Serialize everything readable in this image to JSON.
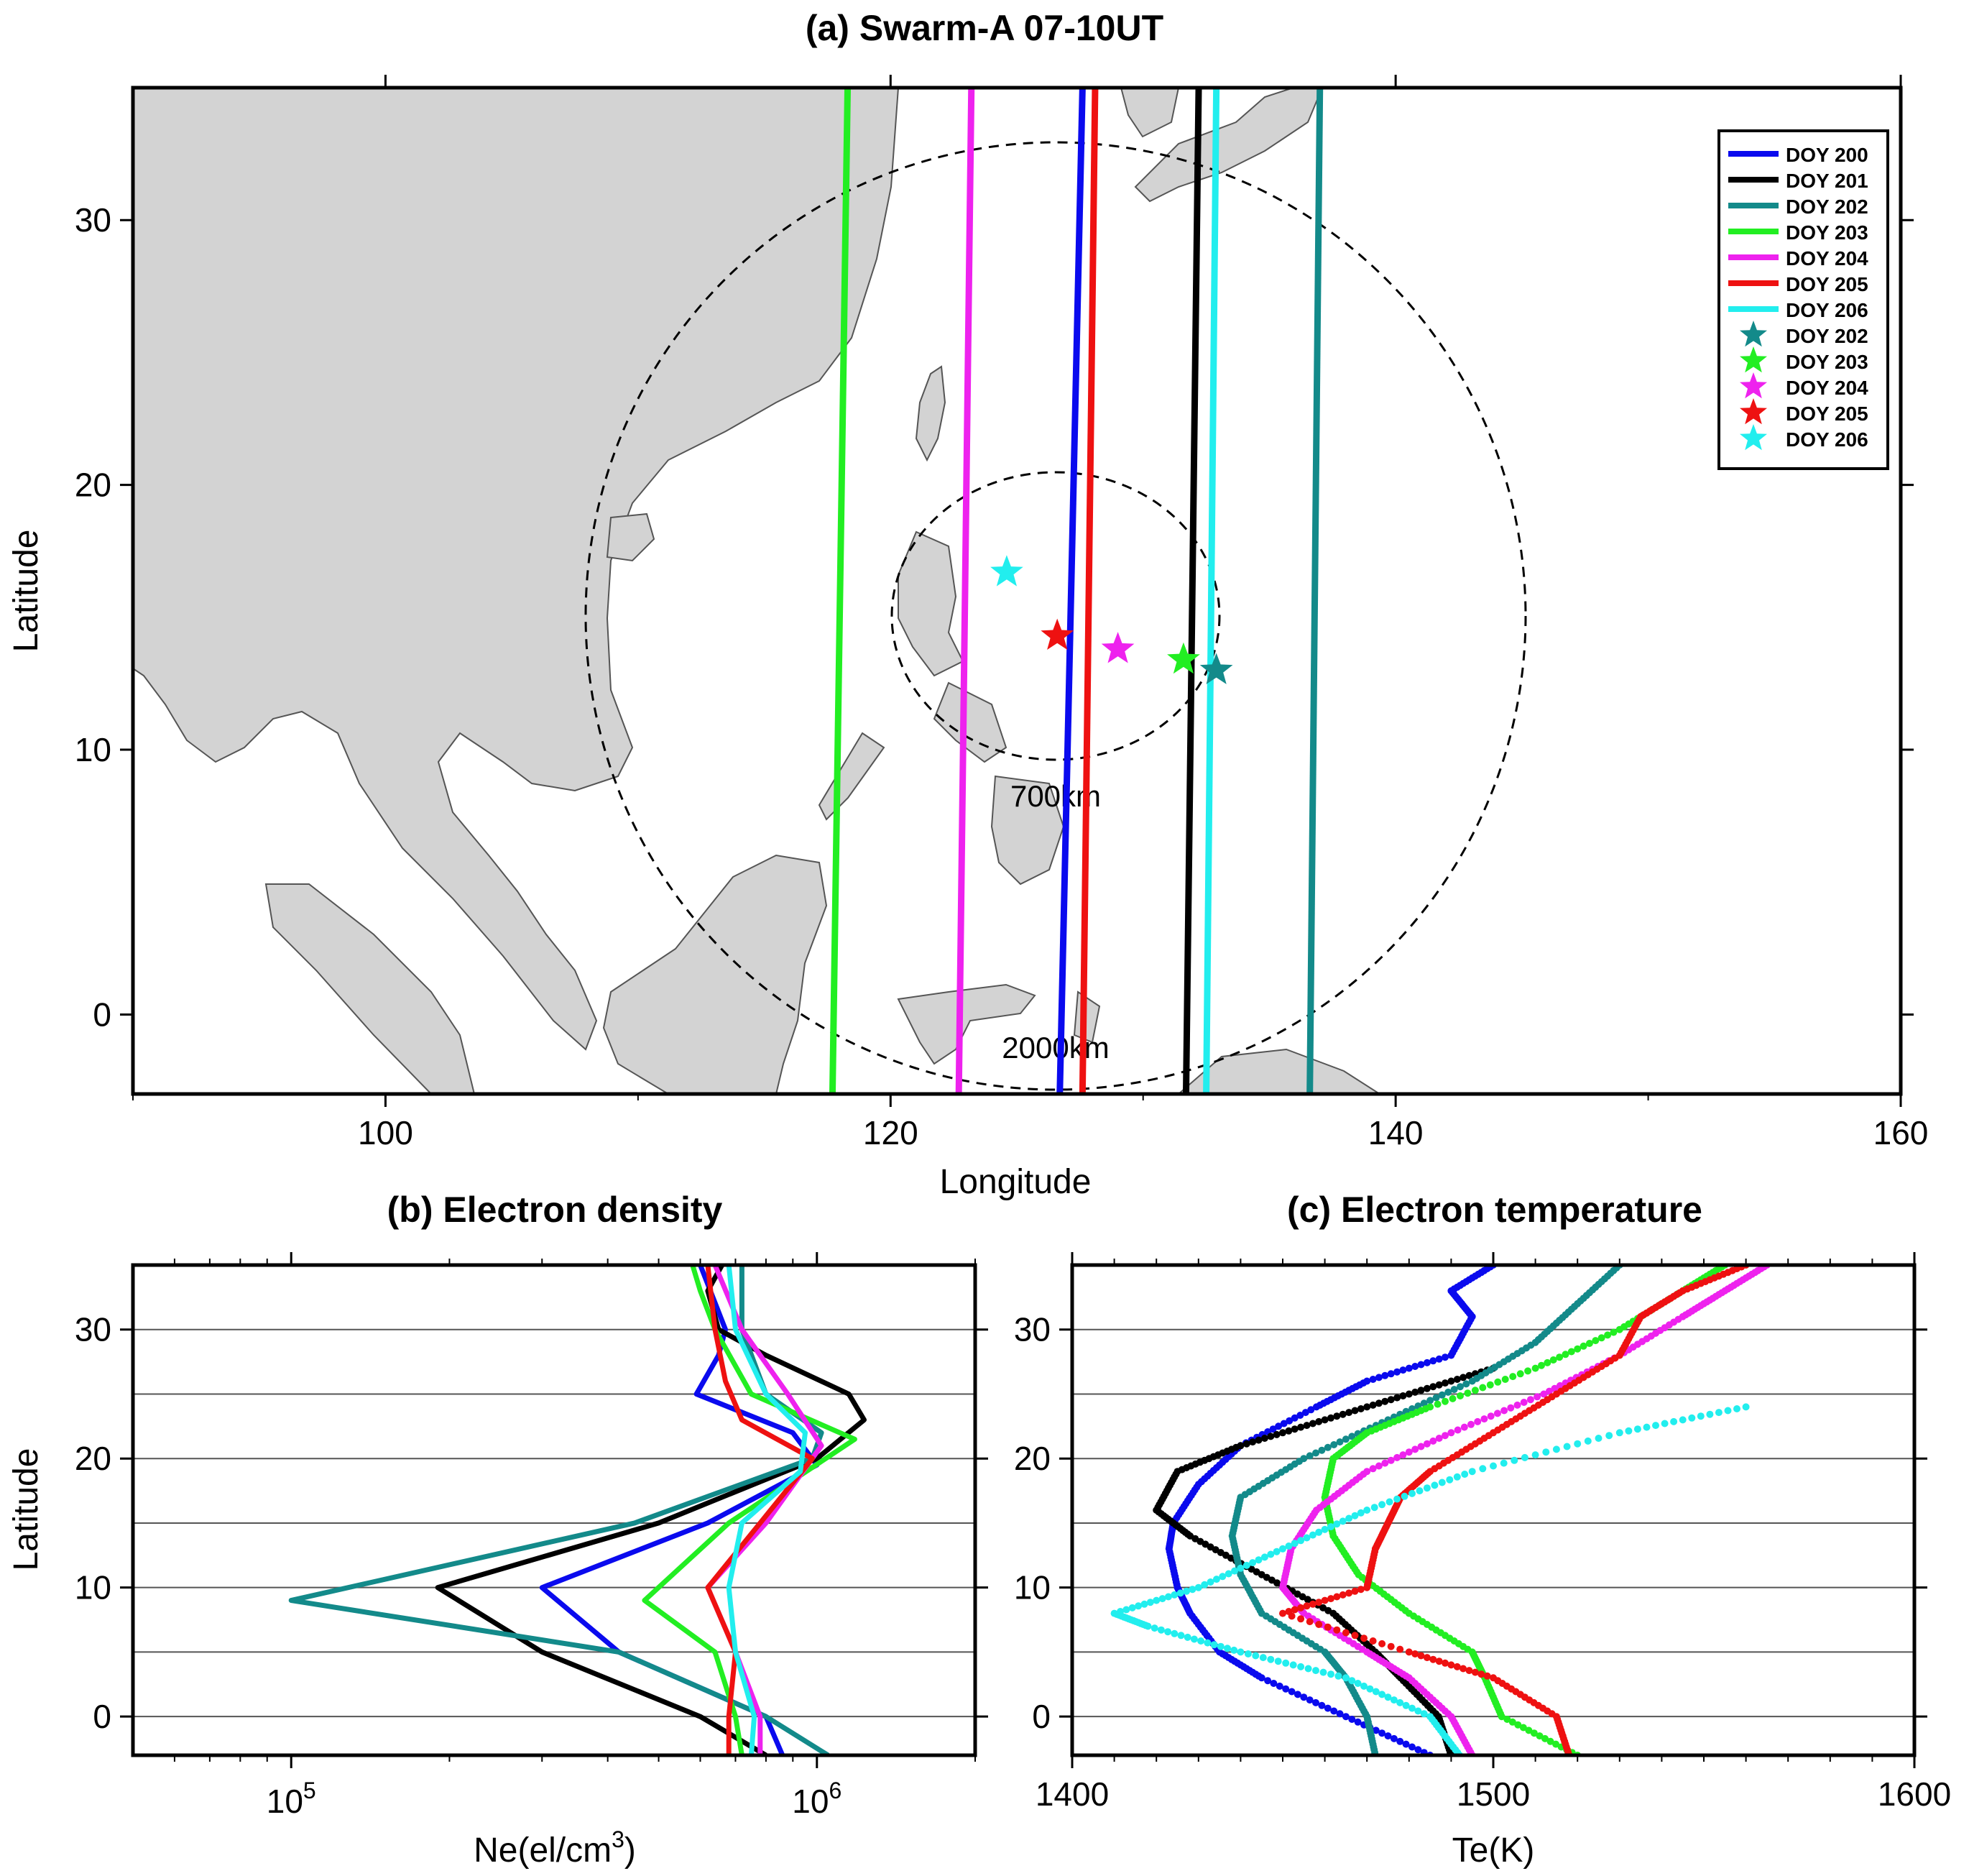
{
  "panel_a": {
    "title": "(a) Swarm-A 07-10UT",
    "xlabel": "Longitude",
    "ylabel": "Latitude",
    "circle_labels": [
      "700km",
      "2000km"
    ],
    "legend_lines": [
      {
        "label": "DOY 200",
        "color": "#0a0aee"
      },
      {
        "label": "DOY 201",
        "color": "#000000"
      },
      {
        "label": "DOY 202",
        "color": "#138a8a"
      },
      {
        "label": "DOY 203",
        "color": "#22ee22"
      },
      {
        "label": "DOY 204",
        "color": "#ee22ee"
      },
      {
        "label": "DOY 205",
        "color": "#ee1111"
      },
      {
        "label": "DOY 206",
        "color": "#22eeee"
      }
    ],
    "legend_stars": [
      {
        "label": "DOY 202",
        "color": "#138a8a"
      },
      {
        "label": "DOY 203",
        "color": "#22ee22"
      },
      {
        "label": "DOY 204",
        "color": "#ee22ee"
      },
      {
        "label": "DOY 205",
        "color": "#ee1111"
      },
      {
        "label": "DOY 206",
        "color": "#22eeee"
      }
    ]
  },
  "panel_b": {
    "title": "(b) Electron density",
    "xlabel_main": "Ne(el/cm",
    "xlabel_sup": "3",
    "xlabel_end": ")",
    "ylabel": "Latitude",
    "xtick_labels": [
      {
        "base": "10",
        "exp": "5"
      },
      {
        "base": "10",
        "exp": "6"
      }
    ]
  },
  "panel_c": {
    "title": "(c) Electron temperature",
    "xlabel": "Te(K)",
    "xtick_labels": [
      "1400",
      "1500",
      "1600"
    ]
  },
  "chart_data": [
    {
      "type": "line",
      "panel": "a",
      "title": "(a) Swarm-A 07-10UT",
      "xlabel": "Longitude",
      "ylabel": "Latitude",
      "xlim": [
        90,
        160
      ],
      "ylim": [
        -3,
        35
      ],
      "xticks": [
        100,
        120,
        140,
        160
      ],
      "yticks": [
        0,
        10,
        20,
        30
      ],
      "center": {
        "lon": 126.5,
        "lat": 14.8
      },
      "circles": [
        {
          "label": "700km",
          "radius_deg_lat": 5.8
        },
        {
          "label": "2000km",
          "radius_deg_lat": 17.9
        }
      ],
      "series": [
        {
          "name": "DOY 200",
          "color": "#0a0aee",
          "x": [
            126.7,
            127.6
          ],
          "y": [
            -3,
            35
          ]
        },
        {
          "name": "DOY 201",
          "color": "#000000",
          "x": [
            131.7,
            132.2
          ],
          "y": [
            -3,
            35
          ]
        },
        {
          "name": "DOY 202",
          "color": "#138a8a",
          "x": [
            136.6,
            137.0
          ],
          "y": [
            -3,
            35
          ]
        },
        {
          "name": "DOY 203",
          "color": "#22ee22",
          "x": [
            117.7,
            118.3
          ],
          "y": [
            -3,
            35
          ]
        },
        {
          "name": "DOY 204",
          "color": "#ee22ee",
          "x": [
            122.7,
            123.2
          ],
          "y": [
            -3,
            35
          ]
        },
        {
          "name": "DOY 205",
          "color": "#ee1111",
          "x": [
            127.6,
            128.1
          ],
          "y": [
            -3,
            35
          ]
        },
        {
          "name": "DOY 206",
          "color": "#22eeee",
          "x": [
            132.5,
            132.9
          ],
          "y": [
            -3,
            35
          ]
        }
      ],
      "stars": [
        {
          "name": "DOY 202",
          "color": "#138a8a",
          "lon": 132.9,
          "lat": 13.0
        },
        {
          "name": "DOY 203",
          "color": "#22ee22",
          "lon": 131.6,
          "lat": 13.4
        },
        {
          "name": "DOY 204",
          "color": "#ee22ee",
          "lon": 129.0,
          "lat": 13.8
        },
        {
          "name": "DOY 205",
          "color": "#ee1111",
          "lon": 126.6,
          "lat": 14.3
        },
        {
          "name": "DOY 206",
          "color": "#22eeee",
          "lon": 124.6,
          "lat": 16.7
        }
      ],
      "ticks": {
        "x": [
          "100",
          "120",
          "140",
          "160"
        ],
        "y": [
          "0",
          "10",
          "20",
          "30"
        ]
      }
    },
    {
      "type": "line",
      "panel": "b",
      "title": "(b) Electron density",
      "xlabel": "Ne(el/cm3)",
      "ylabel": "Latitude",
      "xscale": "log",
      "xlim": [
        50000,
        2000000
      ],
      "ylim": [
        -3,
        35
      ],
      "yticks": [
        "0",
        "10",
        "20",
        "30"
      ],
      "series": [
        {
          "name": "DOY 200",
          "color": "#0a0aee",
          "lat": [
            -3,
            0,
            5,
            10,
            15,
            19.5,
            22,
            25,
            28,
            30,
            35
          ],
          "ne": [
            860000,
            800000,
            420000,
            300000,
            620000,
            1000000,
            900000,
            590000,
            650000,
            670000,
            600000
          ]
        },
        {
          "name": "DOY 201",
          "color": "#000000",
          "lat": [
            -3,
            0,
            5,
            10,
            15,
            20,
            23,
            25,
            28,
            30,
            33,
            35
          ],
          "ne": [
            800000,
            600000,
            300000,
            190000,
            500000,
            1000000,
            1230000,
            1150000,
            800000,
            650000,
            620000,
            660000
          ]
        },
        {
          "name": "DOY 202",
          "color": "#138a8a",
          "lat": [
            -3,
            0,
            5,
            9,
            15,
            20,
            22,
            25,
            30,
            35
          ],
          "ne": [
            1050000,
            800000,
            420000,
            100000,
            450000,
            980000,
            1020000,
            800000,
            720000,
            720000
          ]
        },
        {
          "name": "DOY 203",
          "color": "#22ee22",
          "lat": [
            -3,
            0,
            5,
            9,
            15,
            21.5,
            25,
            30,
            33,
            35
          ],
          "ne": [
            720000,
            700000,
            640000,
            470000,
            680000,
            1180000,
            750000,
            640000,
            600000,
            580000
          ]
        },
        {
          "name": "DOY 204",
          "color": "#ee22ee",
          "lat": [
            -3,
            0,
            5,
            10,
            15,
            21,
            25,
            30,
            35
          ],
          "ne": [
            780000,
            780000,
            700000,
            620000,
            800000,
            1020000,
            880000,
            720000,
            640000
          ]
        },
        {
          "name": "DOY 205",
          "color": "#ee1111",
          "lat": [
            -3,
            0,
            5,
            10,
            15,
            20,
            23,
            26,
            30,
            35
          ],
          "ne": [
            680000,
            680000,
            700000,
            620000,
            780000,
            980000,
            720000,
            670000,
            640000,
            620000
          ]
        },
        {
          "name": "DOY 206",
          "color": "#22eeee",
          "lat": [
            -3,
            0,
            5,
            10,
            15,
            19,
            22,
            25,
            30,
            35
          ],
          "ne": [
            750000,
            760000,
            700000,
            680000,
            720000,
            930000,
            950000,
            800000,
            700000,
            680000
          ]
        }
      ]
    },
    {
      "type": "scatter",
      "panel": "c",
      "title": "(c) Electron temperature",
      "xlabel": "Te(K)",
      "xlim": [
        1400,
        1600
      ],
      "ylim": [
        -3,
        35
      ],
      "xticks": [
        "1400",
        "1500",
        "1600"
      ],
      "yticks": [
        "0",
        "10",
        "20",
        "30"
      ],
      "series": [
        {
          "name": "DOY 200",
          "color": "#0a0aee",
          "lat": [
            -3,
            0,
            3,
            5,
            8,
            10,
            13,
            15,
            18,
            21,
            24,
            26,
            28,
            31,
            33,
            35
          ],
          "te": [
            1485,
            1465,
            1445,
            1435,
            1428,
            1425,
            1423,
            1424,
            1430,
            1440,
            1458,
            1470,
            1490,
            1495,
            1490,
            1500
          ]
        },
        {
          "name": "DOY 201",
          "color": "#000000",
          "lat": [
            -3,
            0,
            3,
            5,
            8,
            11,
            14,
            16,
            19,
            21,
            23,
            25,
            27
          ],
          "te": [
            1490,
            1487,
            1478,
            1472,
            1462,
            1445,
            1428,
            1420,
            1425,
            1440,
            1460,
            1480,
            1500
          ]
        },
        {
          "name": "DOY 202",
          "color": "#138a8a",
          "lat": [
            -3,
            0,
            3,
            5,
            8,
            11,
            14,
            17,
            20,
            23,
            26,
            29,
            32,
            35
          ],
          "te": [
            1472,
            1470,
            1465,
            1460,
            1445,
            1440,
            1438,
            1440,
            1455,
            1475,
            1495,
            1510,
            1520,
            1530
          ]
        },
        {
          "name": "DOY 203",
          "color": "#22ee22",
          "lat": [
            -3,
            0,
            3,
            5,
            8,
            11,
            14,
            17,
            20,
            22,
            24,
            27,
            30,
            33,
            35
          ],
          "te": [
            1520,
            1502,
            1498,
            1495,
            1480,
            1468,
            1462,
            1460,
            1462,
            1470,
            1485,
            1510,
            1530,
            1545,
            1555
          ]
        },
        {
          "name": "DOY 204",
          "color": "#ee22ee",
          "lat": [
            -3,
            0,
            3,
            5,
            8,
            10,
            13,
            16,
            19,
            22,
            25,
            28,
            31,
            33,
            35
          ],
          "te": [
            1495,
            1490,
            1480,
            1470,
            1455,
            1450,
            1452,
            1458,
            1470,
            1490,
            1512,
            1530,
            1545,
            1555,
            1565
          ]
        },
        {
          "name": "DOY 205",
          "color": "#ee1111",
          "lat": [
            -3,
            0,
            3,
            5,
            8,
            10,
            13,
            15,
            17,
            19,
            22,
            25,
            28,
            31,
            33,
            35
          ],
          "te": [
            1518,
            1515,
            1500,
            1480,
            1450,
            1470,
            1472,
            1475,
            1478,
            1485,
            1500,
            1515,
            1530,
            1535,
            1545,
            1560
          ]
        },
        {
          "name": "DOY 206",
          "color": "#22eeee",
          "lat": [
            -3,
            0,
            3,
            5,
            7,
            8,
            10,
            13,
            16,
            19,
            22,
            24
          ],
          "te": [
            1492,
            1485,
            1465,
            1440,
            1418,
            1410,
            1430,
            1450,
            1470,
            1495,
            1530,
            1560
          ]
        }
      ]
    }
  ]
}
